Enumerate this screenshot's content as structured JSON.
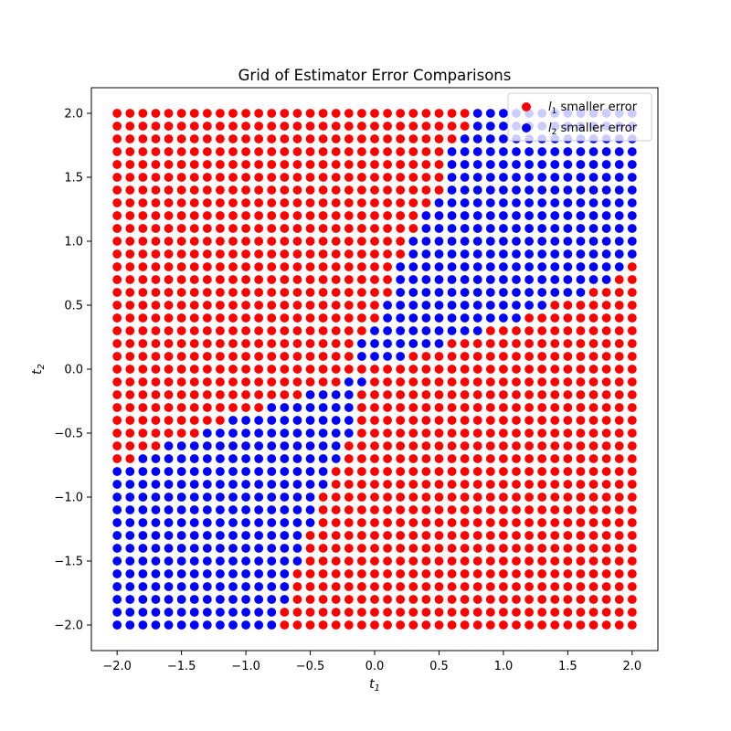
{
  "chart_data": {
    "type": "scatter",
    "title": "Grid of Estimator Error Comparisons",
    "xlabel": {
      "main": "t",
      "sub": "1"
    },
    "ylabel": {
      "main": "t",
      "sub": "2"
    },
    "xlim": [
      -2.2,
      2.2
    ],
    "ylim": [
      -2.2,
      2.2
    ],
    "grid": false,
    "legend_position": "top-right",
    "grid_points": {
      "x_start": -2.0,
      "x_end": 2.0,
      "x_step": 0.1,
      "y_start": -2.0,
      "y_end": 2.0,
      "y_step": 0.1
    },
    "xticks": [
      -2.0,
      -1.5,
      -1.0,
      -0.5,
      0.0,
      0.5,
      1.0,
      1.5,
      2.0
    ],
    "yticks": [
      -2.0,
      -1.5,
      -1.0,
      -0.5,
      0.0,
      0.5,
      1.0,
      1.5,
      2.0
    ],
    "xtick_labels": [
      "−2.0",
      "−1.5",
      "−1.0",
      "−0.5",
      "0.0",
      "0.5",
      "1.0",
      "1.5",
      "2.0"
    ],
    "ytick_labels": [
      "−2.0",
      "−1.5",
      "−1.0",
      "−0.5",
      "0.0",
      "0.5",
      "1.0",
      "1.5",
      "2.0"
    ],
    "blue_region_t1_intervals_by_t2_row": [
      [
        2.0,
        0.8,
        2.0
      ],
      [
        1.9,
        0.8,
        2.0
      ],
      [
        1.8,
        0.7,
        2.0
      ],
      [
        1.7,
        0.6,
        2.0
      ],
      [
        1.6,
        0.6,
        2.0
      ],
      [
        1.5,
        0.6,
        2.0
      ],
      [
        1.4,
        0.6,
        2.0
      ],
      [
        1.3,
        0.5,
        2.0
      ],
      [
        1.2,
        0.4,
        2.0
      ],
      [
        1.1,
        0.4,
        2.0
      ],
      [
        1.0,
        0.3,
        2.0
      ],
      [
        0.9,
        0.3,
        2.0
      ],
      [
        0.8,
        0.2,
        1.9
      ],
      [
        0.7,
        0.2,
        1.8
      ],
      [
        0.6,
        0.2,
        1.6
      ],
      [
        0.5,
        0.1,
        1.3
      ],
      [
        0.4,
        0.1,
        1.1
      ],
      [
        0.3,
        0.0,
        0.8
      ],
      [
        0.2,
        -0.1,
        0.5
      ],
      [
        0.1,
        -0.1,
        0.2
      ],
      [
        0.0,
        null,
        null
      ],
      [
        -0.1,
        -0.2,
        -0.1
      ],
      [
        -0.2,
        -0.5,
        -0.2
      ],
      [
        -0.3,
        -0.8,
        -0.2
      ],
      [
        -0.4,
        -1.1,
        -0.2
      ],
      [
        -0.5,
        -1.3,
        -0.2
      ],
      [
        -0.6,
        -1.6,
        -0.3
      ],
      [
        -0.7,
        -1.8,
        -0.3
      ],
      [
        -0.8,
        -2.0,
        -0.4
      ],
      [
        -0.9,
        -2.0,
        -0.4
      ],
      [
        -1.0,
        -2.0,
        -0.5
      ],
      [
        -1.1,
        -2.0,
        -0.5
      ],
      [
        -1.2,
        -2.0,
        -0.5
      ],
      [
        -1.3,
        -2.0,
        -0.6
      ],
      [
        -1.4,
        -2.0,
        -0.6
      ],
      [
        -1.5,
        -2.0,
        -0.6
      ],
      [
        -1.6,
        -2.0,
        -0.7
      ],
      [
        -1.7,
        -2.0,
        -0.7
      ],
      [
        -1.8,
        -2.0,
        -0.7
      ],
      [
        -1.9,
        -2.0,
        -0.8
      ],
      [
        -2.0,
        -2.0,
        -0.8
      ]
    ],
    "series": [
      {
        "name": "l₁ smaller error",
        "color": "#ff0000",
        "rule": "all grid points outside the blue region"
      },
      {
        "name": "l₂ smaller error",
        "color": "#0000ff",
        "rule": "grid points inside blue_region_t1_intervals_by_t2_row"
      }
    ]
  },
  "legend": {
    "entries": [
      {
        "main": "l",
        "sub": "1",
        "rest": " smaller error",
        "color": "#ff0000"
      },
      {
        "main": "l",
        "sub": "2",
        "rest": " smaller error",
        "color": "#0000ff"
      }
    ]
  }
}
